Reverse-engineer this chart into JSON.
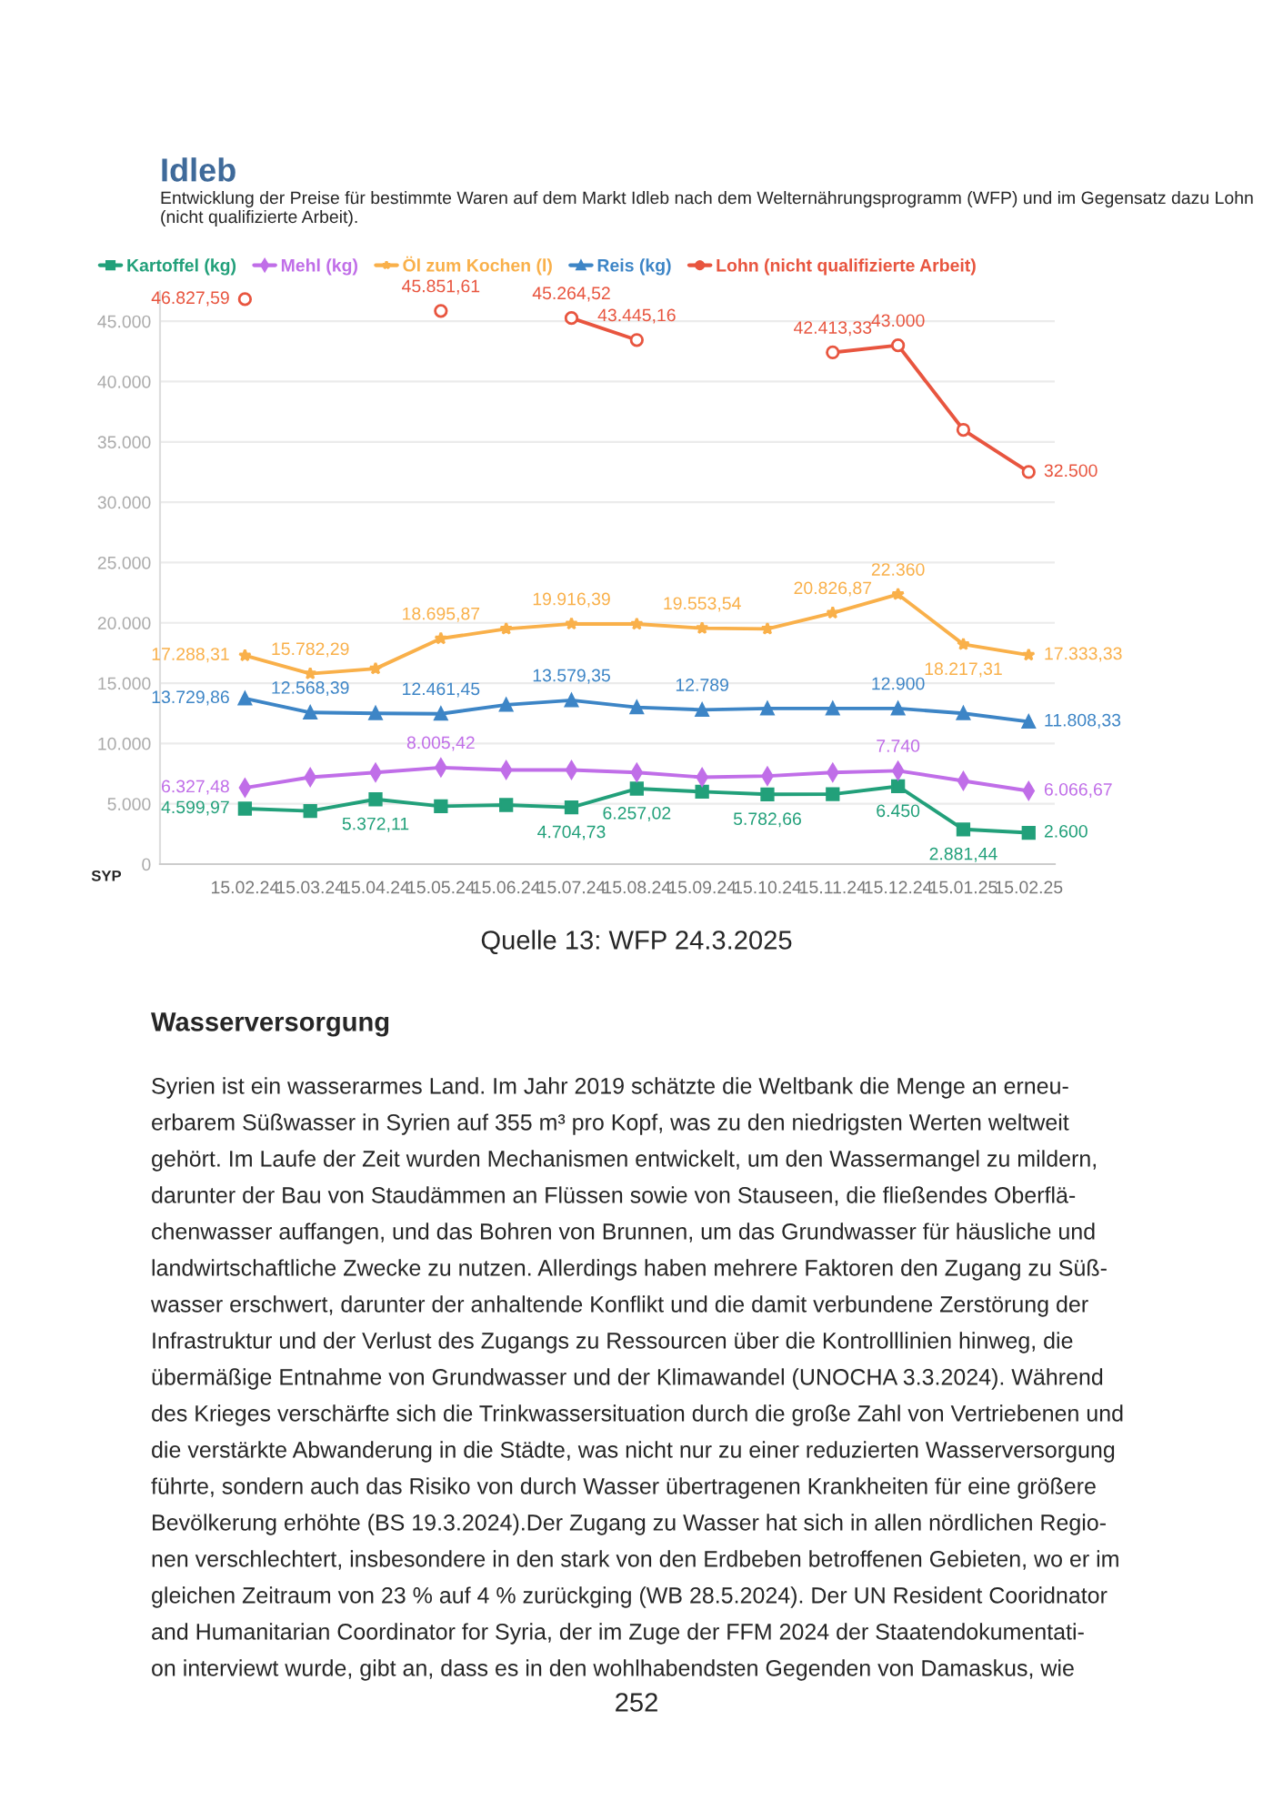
{
  "chart_data": {
    "type": "line",
    "title": "Idleb",
    "subtitle": "Entwicklung der Preise für bestimmte Waren auf dem Markt Idleb nach dem Welternährungsprogramm (WFP) und im Gegensatz dazu Lohn (nicht qualifizierte Arbeit).",
    "ylabel": "SYP",
    "categories": [
      "15.02.24",
      "15.03.24",
      "15.04.24",
      "15.05.24",
      "15.06.24",
      "15.07.24",
      "15.08.24",
      "15.09.24",
      "15.10.24",
      "15.11.24",
      "15.12.24",
      "15.01.25",
      "15.02.25"
    ],
    "series": [
      {
        "name": "Kartoffel (kg)",
        "color": "#22a07a",
        "marker": "square",
        "values": [
          4599.97,
          4400,
          5372.11,
          4800,
          4900,
          4704.73,
          6257.02,
          6000,
          5782.66,
          5800,
          6450,
          2881.44,
          2600
        ],
        "value_labels": [
          "4.599,97",
          null,
          "5.372,11",
          null,
          null,
          "4.704,73",
          "6.257,02",
          null,
          "5.782,66",
          null,
          "6.450",
          "2.881,44",
          "2.600"
        ]
      },
      {
        "name": "Mehl (kg)",
        "color": "#c06ee8",
        "marker": "diamond",
        "values": [
          6327.48,
          7200,
          7600,
          8005.42,
          7800,
          7800,
          7600,
          7200,
          7300,
          7600,
          7740,
          6900,
          6066.67
        ],
        "value_labels": [
          "6.327,48",
          null,
          null,
          "8.005,42",
          null,
          null,
          null,
          null,
          null,
          null,
          "7.740",
          null,
          "6.066,67"
        ]
      },
      {
        "name": "Öl zum Kochen (l)",
        "color": "#f9b04a",
        "marker": "star",
        "values": [
          17288.31,
          15782.29,
          16200,
          18695.87,
          19500,
          19916.39,
          19900,
          19553.54,
          19500,
          20826.87,
          22360,
          18217.31,
          17333.33
        ],
        "value_labels": [
          "17.288,31",
          "15.782,29",
          null,
          "18.695,87",
          null,
          "19.916,39",
          null,
          "19.553,54",
          null,
          "20.826,87",
          "22.360",
          "18.217,31",
          "17.333,33"
        ]
      },
      {
        "name": "Reis (kg)",
        "color": "#3d85c6",
        "marker": "triangle",
        "values": [
          13729.86,
          12568.39,
          12500,
          12461.45,
          13200,
          13579.35,
          13000,
          12789,
          12900,
          12900,
          12900,
          12500,
          11808.33
        ],
        "value_labels": [
          "13.729,86",
          "12.568,39",
          null,
          "12.461,45",
          null,
          "13.579,35",
          null,
          "12.789",
          null,
          null,
          "12.900",
          null,
          "11.808,33"
        ]
      },
      {
        "name": "Lohn (nicht qualifizierte Arbeit)",
        "color": "#e8553f",
        "marker": "circle",
        "values": [
          46827.59,
          null,
          null,
          45851.61,
          null,
          45264.52,
          43445.16,
          null,
          null,
          42413.33,
          43000,
          36000,
          32500
        ],
        "value_labels": [
          "46.827,59",
          null,
          null,
          "45.851,61",
          null,
          "45.264,52",
          "43.445,16",
          null,
          null,
          "42.413,33",
          "43.000",
          null,
          "32.500"
        ]
      }
    ],
    "ylim": [
      0,
      47500
    ],
    "yticks": [
      0,
      {
        "value": 5000,
        "label": "5.000"
      },
      {
        "value": 10000,
        "label": "10.000"
      },
      {
        "value": 15000,
        "label": "15.000"
      },
      {
        "value": 20000,
        "label": "20.000"
      },
      {
        "value": 25000,
        "label": "25.000"
      },
      {
        "value": 30000,
        "label": "30.000"
      },
      {
        "value": 35000,
        "label": "35.000"
      },
      {
        "value": 40000,
        "label": "40.000"
      },
      {
        "value": 45000,
        "label": "45.000"
      }
    ],
    "grid": "y",
    "legend": "top left",
    "line_style": "solid",
    "annotations": [
      "Quelle 13: WFP 24.3.2025",
      "Wasserversorgung",
      "Syrien ist ein wasserarmes Land. Im Jahr 2019 schätzte die Weltbank die Menge an erneu-",
      "erbarem Süßwasser in Syrien auf 355 m³ pro Kopf, was zu den niedrigsten Werten weltweit",
      "gehört. Im Laufe der Zeit wurden Mechanismen entwickelt, um den Wassermangel zu mildern,",
      "darunter der Bau von Staudämmen an Flüssen sowie von Stauseen, die fließendes Oberflä-",
      "chenwasser auffangen, und das Bohren von Brunnen, um das Grundwasser für häusliche und",
      "landwirtschaftliche Zwecke zu nutzen. Allerdings haben mehrere Faktoren den Zugang zu Süß-",
      "wasser erschwert, darunter der anhaltende Konflikt und die damit verbundene Zerstörung der",
      "Infrastruktur und der Verlust des Zugangs zu Ressourcen über die Kontrolllinien hinweg, die",
      "übermäßige Entnahme von Grundwasser und der Klimawandel (UNOCHA 3.3.2024). Während",
      "des Krieges verschärfte sich die Trinkwassersituation durch die große Zahl von Vertriebenen und",
      "die verstärkte Abwanderung in die Städte, was nicht nur zu einer reduzierten Wasserversorgung",
      "führte, sondern auch das Risiko von durch Wasser übertragenen Krankheiten für eine größere",
      "Bevölkerung erhöhte (BS 19.3.2024).Der Zugang zu Wasser hat sich in allen nördlichen Regio-",
      "nen verschlechtert, insbesondere in den stark von den Erdbeben betroffenen Gebieten, wo er im",
      "gleichen Zeitraum von 23 % auf 4 % zurückging (WB 28.5.2024). Der UN Resident Cooridnator",
      "and Humanitarian Coordinator for Syria, der im Zuge der FFM 2024 der Staatendokumentati-",
      "on interviewt wurde, gibt an, dass es in den wohlhabendsten Gegenden von Damaskus, wie",
      "252"
    ]
  }
}
